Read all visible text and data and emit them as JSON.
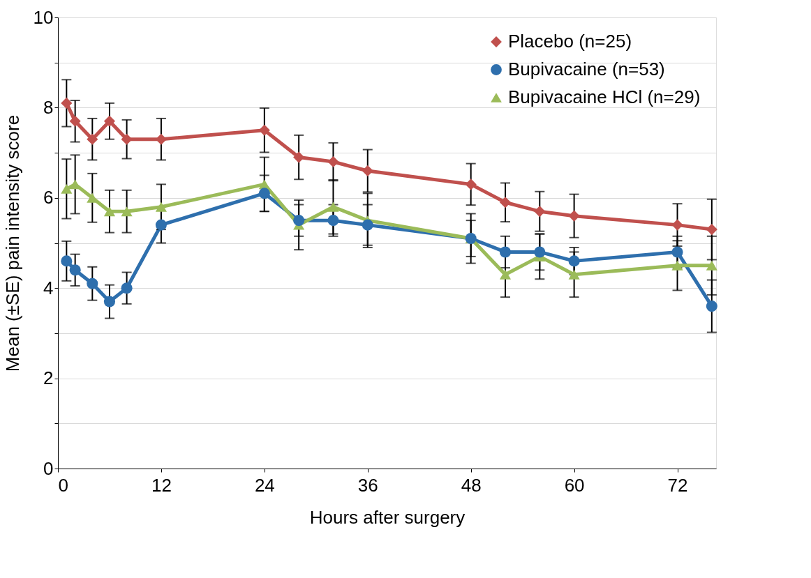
{
  "chart_data": {
    "type": "line",
    "xlabel": "Hours after surgery",
    "ylabel": "Mean (±SE) pain intensity score",
    "x": [
      1,
      2,
      4,
      6,
      8,
      12,
      24,
      28,
      32,
      36,
      48,
      52,
      56,
      60,
      72,
      76
    ],
    "xlim": [
      0,
      76.5
    ],
    "xticks": [
      0,
      12,
      24,
      36,
      48,
      60,
      72
    ],
    "ylim": [
      0,
      10
    ],
    "yticks": [
      0,
      {
        "value": 1,
        "label": null
      },
      2,
      {
        "value": 3,
        "label": null
      },
      4,
      {
        "value": 5,
        "label": null
      },
      6,
      {
        "value": 7,
        "label": null
      },
      8,
      {
        "value": 9,
        "label": null
      },
      10
    ],
    "grid": "y",
    "legend": "top right",
    "line_style": "solid",
    "series": [
      {
        "name": "Placebo (n=25)",
        "color": "#c0504d",
        "marker": "diamond",
        "values": [
          8.1,
          7.7,
          7.3,
          7.7,
          7.3,
          7.3,
          7.5,
          6.9,
          6.8,
          6.6,
          6.3,
          5.9,
          5.7,
          5.6,
          5.4,
          5.3
        ],
        "errors": [
          0.52,
          0.46,
          0.46,
          0.4,
          0.43,
          0.46,
          0.49,
          0.49,
          0.42,
          0.47,
          0.46,
          0.43,
          0.44,
          0.48,
          0.47,
          0.67
        ]
      },
      {
        "name": "Bupivacaine (n=53)",
        "color": "#2e6fad",
        "marker": "circle",
        "values": [
          4.6,
          4.4,
          4.1,
          3.7,
          4.0,
          5.4,
          6.1,
          5.5,
          5.5,
          5.4,
          5.1,
          4.8,
          4.8,
          4.6,
          4.8,
          3.6
        ],
        "errors": [
          0.44,
          0.35,
          0.37,
          0.37,
          0.35,
          0.4,
          0.4,
          0.35,
          0.35,
          0.45,
          0.4,
          0.35,
          0.4,
          0.3,
          0.35,
          0.58
        ]
      },
      {
        "name": "Bupivacaine HCl (n=29)",
        "color": "#9bbb59",
        "marker": "triangle",
        "values": [
          6.2,
          6.3,
          6.0,
          5.7,
          5.7,
          5.8,
          6.3,
          5.4,
          5.8,
          5.5,
          5.1,
          4.3,
          4.7,
          4.3,
          4.5,
          4.5
        ],
        "errors": [
          0.66,
          0.65,
          0.54,
          0.47,
          0.47,
          0.5,
          0.6,
          0.55,
          0.6,
          0.6,
          0.55,
          0.5,
          0.5,
          0.5,
          0.55,
          0.65
        ]
      }
    ]
  }
}
